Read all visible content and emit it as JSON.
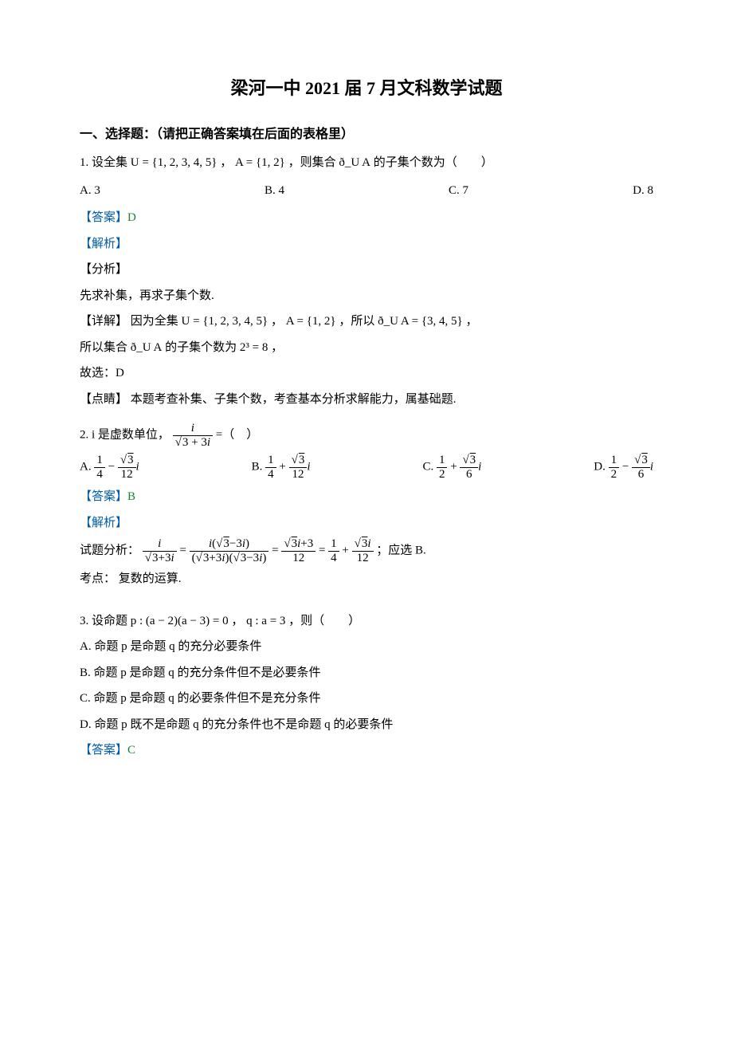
{
  "title": "梁河一中 2021 届 7 月文科数学试题",
  "section1": "一、选择题：（请把正确答案填在后面的表格里）",
  "labels": {
    "answer": "【答案】",
    "jiexi": "【解析】",
    "fenxi": "【分析】",
    "xiangjie": "【详解】",
    "dianjing": "【点睛】",
    "kaodian": "考点：",
    "analysis": "试题分析：",
    "guxuan": "故选：",
    "yingxuan": "；应选 B."
  },
  "q1": {
    "stem_pre": "1. 设全集 ",
    "stem_mid": "，则集合 ",
    "stem_tail": " 的子集个数为（　　）",
    "U": "U = {1, 2, 3, 4, 5}",
    "A": "A = {1, 2}",
    "CuA": "ð_U A",
    "opts": {
      "A": "A. 3",
      "B": "B. 4",
      "C": "C. 7",
      "D": "D. 8"
    },
    "answer": "D",
    "fenxi": "先求补集，再求子集个数.",
    "detail_pre": "因为全集 ",
    "detail_mid": "，所以 ",
    "CuA_val": "ð_U A = {3, 4, 5}",
    "line2_pre": "所以集合 ",
    "line2_tail": " 的子集个数为 ",
    "line2_math": "2³ = 8",
    "dianjing": "本题考查补集、子集个数，考查基本分析求解能力，属基础题."
  },
  "q2": {
    "stem_pre": "2.  i 是虚数单位，",
    "stem_tail": " =（　）",
    "opts": {
      "A": "A.",
      "B": "B.",
      "C": "C.",
      "D": "D."
    },
    "answer": "B",
    "kaodian": "复数的运算."
  },
  "q3": {
    "stem_pre": "3. 设命题 ",
    "p": "p : (a − 2)(a − 3) = 0",
    "q": "q : a = 3",
    "stem_tail": "，则（　　）",
    "opts": {
      "A": "A. 命题 p 是命题 q 的充分必要条件",
      "B": "B. 命题 p 是命题 q 的充分条件但不是必要条件",
      "C": "C. 命题 p 是命题 q 的必要条件但不是充分条件",
      "D": "D. 命题 p 既不是命题 q 的充分条件也不是命题 q 的必要条件"
    },
    "answer": "C"
  }
}
